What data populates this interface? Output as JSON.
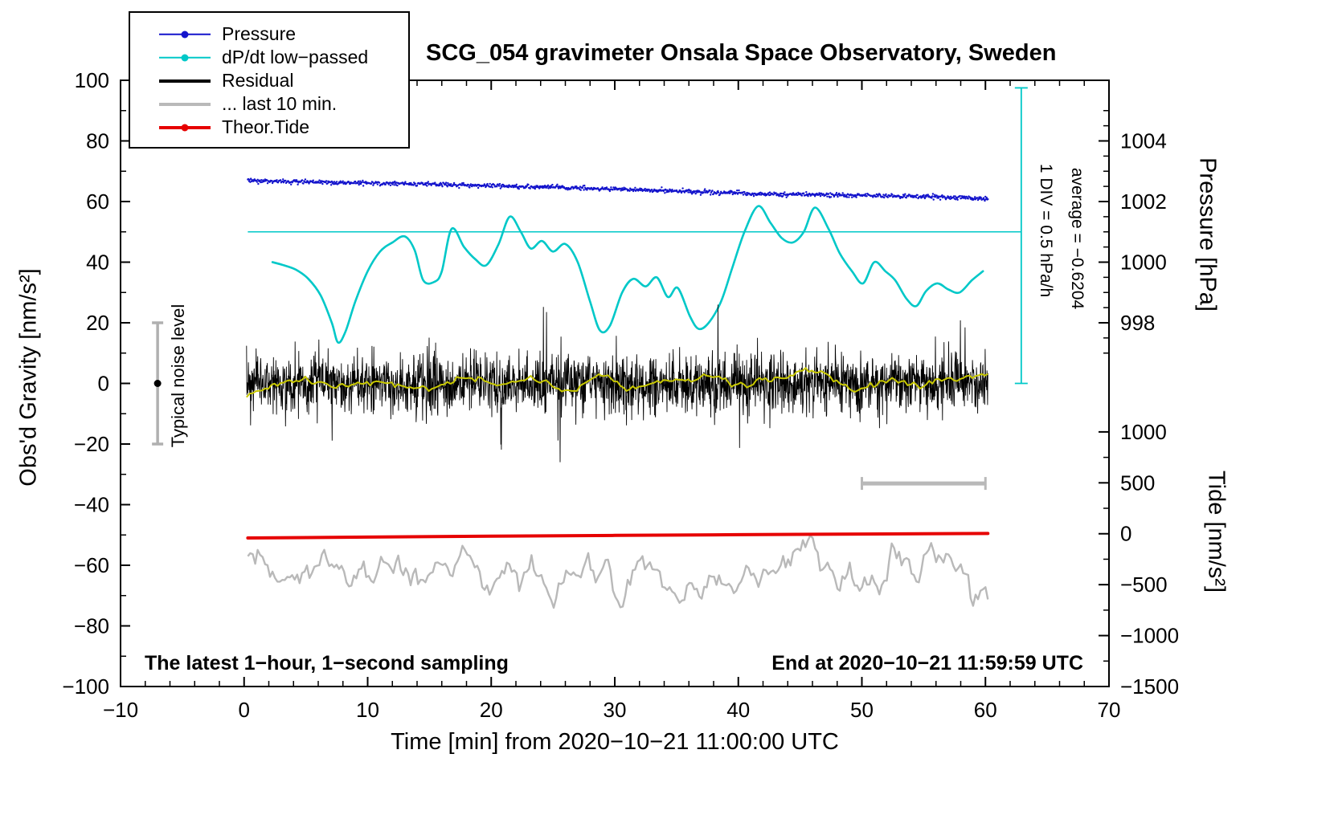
{
  "title": "SCG_054 gravimeter Onsala Space Observatory, Sweden",
  "notes": {
    "sampling": "The latest 1−hour, 1−second sampling",
    "end_time": "End at 2020−10−21 11:59:59 UTC",
    "noise_label": "Typical noise level",
    "div_label": "1 DIV = 0.5 hPa/h",
    "avg_label": "average = −0.6204"
  },
  "axes": {
    "x_label": "Time [min] from 2020−10−21 11:00:00 UTC",
    "y_left_label": "Obs'd Gravity [nm/s²]",
    "y_pressure_label": "Pressure [hPa]",
    "y_tide_label": "Tide [nm/s²]"
  },
  "legend": [
    {
      "id": "pressure",
      "label": "Pressure",
      "color": "#1414cc",
      "marker": "dot",
      "line_width": 2.5
    },
    {
      "id": "dpdt",
      "label": "dP/dt low−passed",
      "color": "#00c8c8",
      "marker": "dot",
      "line_width": 2.5
    },
    {
      "id": "residual",
      "label": "Residual",
      "color": "#000000",
      "marker": "line",
      "line_width": 4
    },
    {
      "id": "last10",
      "label": "... last 10 min.",
      "color": "#b9b9b9",
      "marker": "line",
      "line_width": 4
    },
    {
      "id": "tide",
      "label": "Theor.Tide",
      "color": "#e60000",
      "marker": "dot",
      "line_width": 4
    }
  ],
  "chart_data": {
    "type": "line",
    "title": "SCG_054 gravimeter Onsala Space Observatory, Sweden",
    "x_axis": {
      "label": "Time [min] from 2020−10−21 11:00:00 UTC",
      "range": [
        -10,
        70
      ],
      "major_ticks": [
        -10,
        0,
        10,
        20,
        30,
        40,
        50,
        60,
        70
      ],
      "tick_labels": [
        "−10",
        "0",
        "10",
        "20",
        "30",
        "40",
        "50",
        "60",
        "70"
      ],
      "minor_step": 2
    },
    "y_left": {
      "label": "Obs'd Gravity [nm/s²]",
      "range": [
        -100,
        100
      ],
      "major_ticks": [
        -100,
        -80,
        -60,
        -40,
        -20,
        0,
        20,
        40,
        60,
        80,
        100
      ],
      "tick_labels": [
        "−100",
        "−80",
        "−60",
        "−40",
        "−20",
        "0",
        "20",
        "40",
        "60",
        "80",
        "100"
      ],
      "minor_step": 10
    },
    "y_pressure": {
      "label": "Pressure [hPa]",
      "ticks_hpa": [
        998,
        1000,
        1002,
        1004
      ],
      "tick_labels": [
        "998",
        "1000",
        "1002",
        "1004"
      ],
      "hpa_at_left_zero": 996,
      "left_units_per_hpa": 10,
      "minor_step_hpa": 0.5
    },
    "y_tide": {
      "label": "Tide [nm/s²]",
      "ticks": [
        1000,
        500,
        0,
        -500,
        -1000,
        -1500
      ],
      "tick_labels": [
        "1000",
        "500",
        "0",
        "−500",
        "−1000",
        "−1500"
      ],
      "tide_zero_left": -49.6,
      "left_per_tide": 0.0336,
      "minor_step": 250
    },
    "reference_lines": {
      "cyan_ref": {
        "y": 50,
        "x_from": 0.3,
        "x_to": 62.9,
        "color": "#00c8c8"
      },
      "div_bar": {
        "x": 62.9,
        "y_from": 0,
        "y_to": 97.5,
        "color": "#00c8c8"
      },
      "noise_marker": {
        "x": -7,
        "y": 0,
        "half_range": 20,
        "dot_color": "#000000",
        "bar_color": "#b0b0b0"
      },
      "scale_bar": {
        "y": -33,
        "x_from": 50,
        "x_to": 60,
        "color": "#b9b9b9"
      }
    },
    "series": [
      {
        "id": "pressure",
        "name": "Pressure",
        "axis": "pressure",
        "style": "dots",
        "color": "#1414cc",
        "x_start": 0.3,
        "x_end": 60.2,
        "step": 0.05,
        "jitter": 0.35,
        "seed": 3,
        "anchor_points_hpa": [
          [
            0.3,
            1002.7
          ],
          [
            5,
            1002.65
          ],
          [
            10,
            1002.61
          ],
          [
            15,
            1002.57
          ],
          [
            20,
            1002.52
          ],
          [
            25,
            1002.47
          ],
          [
            30,
            1002.41
          ],
          [
            35,
            1002.35
          ],
          [
            38,
            1002.3
          ],
          [
            40,
            1002.27
          ],
          [
            42,
            1002.25
          ],
          [
            45,
            1002.23
          ],
          [
            48,
            1002.21
          ],
          [
            50,
            1002.2
          ],
          [
            55,
            1002.16
          ],
          [
            60.2,
            1002.1
          ]
        ]
      },
      {
        "id": "dpdt",
        "name": "dP/dt low−passed",
        "axis": "left",
        "style": "smooth",
        "color": "#00c8c8",
        "width": 2.6,
        "points": [
          [
            2.3,
            40
          ],
          [
            3.2,
            39
          ],
          [
            4.2,
            37.5
          ],
          [
            5.2,
            34.5
          ],
          [
            6.2,
            29
          ],
          [
            7.1,
            20
          ],
          [
            7.6,
            13.5
          ],
          [
            8.2,
            17
          ],
          [
            9,
            27
          ],
          [
            10,
            37
          ],
          [
            11,
            43.5
          ],
          [
            12,
            46.5
          ],
          [
            13,
            48.5
          ],
          [
            13.8,
            44
          ],
          [
            14.5,
            34
          ],
          [
            15.4,
            33.5
          ],
          [
            16,
            37
          ],
          [
            16.8,
            51
          ],
          [
            17.8,
            45
          ],
          [
            18.7,
            41
          ],
          [
            19.6,
            39
          ],
          [
            20.6,
            46
          ],
          [
            21.5,
            55
          ],
          [
            22.4,
            50
          ],
          [
            23.2,
            44.5
          ],
          [
            24.1,
            47
          ],
          [
            25,
            43.5
          ],
          [
            26,
            46
          ],
          [
            27,
            40
          ],
          [
            28,
            27
          ],
          [
            28.8,
            17.5
          ],
          [
            29.6,
            19
          ],
          [
            30.6,
            30
          ],
          [
            31.5,
            34.5
          ],
          [
            32.5,
            32
          ],
          [
            33.4,
            35
          ],
          [
            34.3,
            28.5
          ],
          [
            35.1,
            31.5
          ],
          [
            36.1,
            22
          ],
          [
            36.8,
            18
          ],
          [
            37.6,
            20
          ],
          [
            38.6,
            27
          ],
          [
            39.5,
            38
          ],
          [
            40.5,
            50
          ],
          [
            41.6,
            58.5
          ],
          [
            42.6,
            53
          ],
          [
            43.5,
            48
          ],
          [
            44.4,
            46.5
          ],
          [
            45.3,
            50
          ],
          [
            46.2,
            58
          ],
          [
            47.3,
            51
          ],
          [
            48.2,
            43
          ],
          [
            49.2,
            37
          ],
          [
            50.1,
            33
          ],
          [
            51,
            40
          ],
          [
            51.9,
            37
          ],
          [
            52.7,
            34
          ],
          [
            53.6,
            28
          ],
          [
            54.4,
            25.5
          ],
          [
            55.2,
            30.5
          ],
          [
            56.1,
            33
          ],
          [
            57,
            31
          ],
          [
            57.9,
            30
          ],
          [
            58.9,
            34
          ],
          [
            59.8,
            37
          ]
        ]
      },
      {
        "id": "residual",
        "name": "Residual",
        "axis": "left",
        "style": "noise",
        "color": "#000000",
        "x_start": 0.2,
        "x_end": 60.2,
        "points_per_min": 40,
        "mean": 0,
        "sigma": 4.5,
        "spike_prob": 0.04,
        "spike_scale": 2.4,
        "seed": 7
      },
      {
        "id": "residual-lowpass",
        "name": "Residual low−passed",
        "axis": "left",
        "style": "smooth-noise",
        "color": "#c8c800",
        "width": 2,
        "x_start": 0.2,
        "x_end": 60.2,
        "points_per_min": 4,
        "mean": 0,
        "sigma": 4,
        "smooth_half_window": 4,
        "seed": 11
      },
      {
        "id": "last10",
        "name": "... last 10 min.",
        "axis": "left",
        "style": "smooth-noise",
        "color": "#b9b9b9",
        "width": 2.4,
        "x_start": 0.3,
        "x_end": 60.2,
        "points_per_min": 5,
        "mean": -63,
        "sigma": 9,
        "smooth_half_window": 2,
        "seed": 23
      },
      {
        "id": "tide",
        "name": "Theor.Tide",
        "axis": "left",
        "style": "line",
        "color": "#e60000",
        "width": 4,
        "points": [
          [
            0.3,
            -51.0
          ],
          [
            10,
            -50.7
          ],
          [
            20,
            -50.4
          ],
          [
            30,
            -50.15
          ],
          [
            40,
            -49.9
          ],
          [
            50,
            -49.7
          ],
          [
            60.2,
            -49.5
          ]
        ]
      }
    ]
  }
}
